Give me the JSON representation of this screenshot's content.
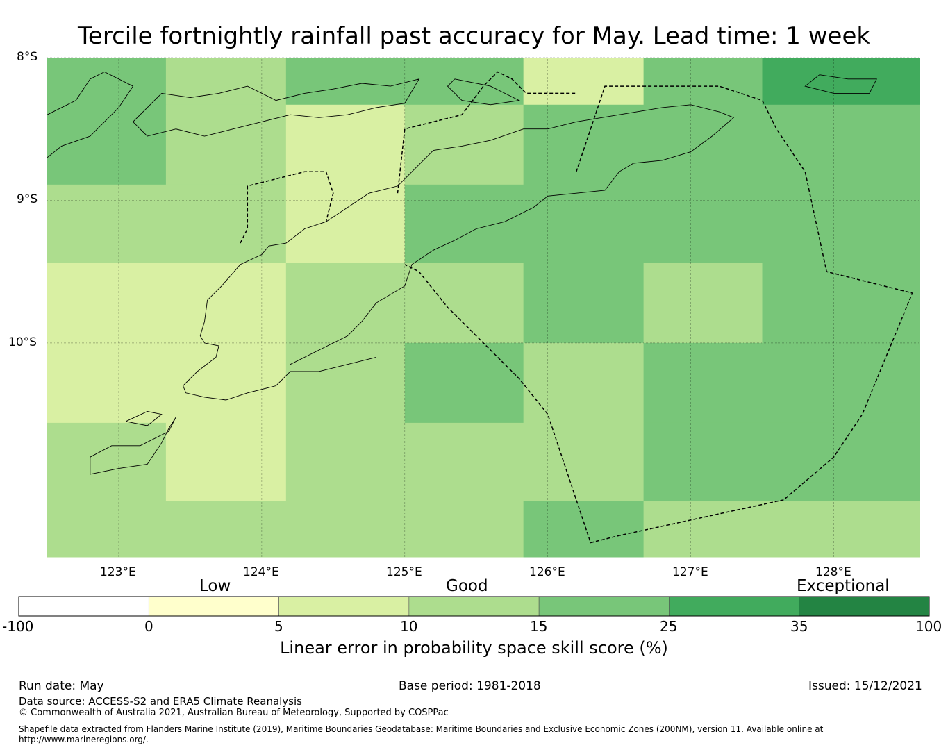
{
  "title": "Tercile fortnightly rainfall past accuracy for May. Lead time: 1 week",
  "map": {
    "lat_labels": [
      "8°S",
      "9°S",
      "10°S"
    ],
    "lon_labels": [
      "123°E",
      "124°E",
      "125°E",
      "126°E",
      "127°E",
      "128°E"
    ],
    "lon_range": [
      122.5,
      128.6
    ],
    "lat_range": [
      -11.5,
      -8.0
    ],
    "grid_lons": [
      123,
      124,
      125,
      126,
      127,
      128
    ],
    "grid_lats": [
      -8,
      -9,
      -10
    ],
    "cells": [
      {
        "lon": [
          122.5,
          123.33
        ],
        "lat": [
          -8.0,
          -8.33
        ],
        "score": 20
      },
      {
        "lon": [
          123.33,
          124.17
        ],
        "lat": [
          -8.0,
          -8.33
        ],
        "score": 12
      },
      {
        "lon": [
          124.17,
          125.0
        ],
        "lat": [
          -8.0,
          -8.33
        ],
        "score": 20
      },
      {
        "lon": [
          125.0,
          125.83
        ],
        "lat": [
          -8.0,
          -8.33
        ],
        "score": 20
      },
      {
        "lon": [
          125.83,
          126.67
        ],
        "lat": [
          -8.0,
          -8.33
        ],
        "score": 8
      },
      {
        "lon": [
          126.67,
          127.5
        ],
        "lat": [
          -8.0,
          -8.33
        ],
        "score": 20
      },
      {
        "lon": [
          127.5,
          128.6
        ],
        "lat": [
          -8.0,
          -8.33
        ],
        "score": 30
      },
      {
        "lon": [
          122.5,
          123.33
        ],
        "lat": [
          -8.33,
          -8.89
        ],
        "score": 20
      },
      {
        "lon": [
          123.33,
          124.17
        ],
        "lat": [
          -8.33,
          -8.89
        ],
        "score": 12
      },
      {
        "lon": [
          124.17,
          125.0
        ],
        "lat": [
          -8.33,
          -8.89
        ],
        "score": 8
      },
      {
        "lon": [
          125.0,
          125.83
        ],
        "lat": [
          -8.33,
          -8.89
        ],
        "score": 12
      },
      {
        "lon": [
          125.83,
          128.6
        ],
        "lat": [
          -8.33,
          -8.89
        ],
        "score": 20
      },
      {
        "lon": [
          122.5,
          124.17
        ],
        "lat": [
          -8.89,
          -9.44
        ],
        "score": 12
      },
      {
        "lon": [
          124.17,
          125.0
        ],
        "lat": [
          -8.89,
          -9.44
        ],
        "score": 8
      },
      {
        "lon": [
          125.0,
          128.6
        ],
        "lat": [
          -8.89,
          -9.44
        ],
        "score": 20
      },
      {
        "lon": [
          122.5,
          124.17
        ],
        "lat": [
          -9.44,
          -10.56
        ],
        "score": 8
      },
      {
        "lon": [
          124.17,
          125.83
        ],
        "lat": [
          -9.44,
          -10.0
        ],
        "score": 12
      },
      {
        "lon": [
          125.83,
          126.67
        ],
        "lat": [
          -9.44,
          -10.0
        ],
        "score": 20
      },
      {
        "lon": [
          126.67,
          127.5
        ],
        "lat": [
          -9.44,
          -10.0
        ],
        "score": 12
      },
      {
        "lon": [
          127.5,
          128.6
        ],
        "lat": [
          -9.44,
          -10.0
        ],
        "score": 20
      },
      {
        "lon": [
          124.17,
          125.0
        ],
        "lat": [
          -10.0,
          -10.56
        ],
        "score": 12
      },
      {
        "lon": [
          125.0,
          125.83
        ],
        "lat": [
          -10.0,
          -10.56
        ],
        "score": 20
      },
      {
        "lon": [
          125.83,
          126.67
        ],
        "lat": [
          -10.0,
          -10.56
        ],
        "score": 12
      },
      {
        "lon": [
          126.67,
          128.6
        ],
        "lat": [
          -10.0,
          -10.56
        ],
        "score": 20
      },
      {
        "lon": [
          122.5,
          123.33
        ],
        "lat": [
          -10.56,
          -11.11
        ],
        "score": 12
      },
      {
        "lon": [
          123.33,
          124.17
        ],
        "lat": [
          -10.56,
          -11.11
        ],
        "score": 8
      },
      {
        "lon": [
          124.17,
          126.67
        ],
        "lat": [
          -10.56,
          -11.11
        ],
        "score": 12
      },
      {
        "lon": [
          126.67,
          128.6
        ],
        "lat": [
          -10.56,
          -11.11
        ],
        "score": 20
      },
      {
        "lon": [
          122.5,
          125.83
        ],
        "lat": [
          -11.11,
          -11.5
        ],
        "score": 12
      },
      {
        "lon": [
          125.83,
          126.67
        ],
        "lat": [
          -11.11,
          -11.5
        ],
        "score": 20
      },
      {
        "lon": [
          126.67,
          128.6
        ],
        "lat": [
          -11.11,
          -11.5
        ],
        "score": 12
      }
    ],
    "coastlines": [
      [
        [
          124.8,
          -10.1
        ],
        [
          124.6,
          -10.15
        ],
        [
          124.4,
          -10.2
        ],
        [
          124.2,
          -10.2
        ],
        [
          124.1,
          -10.3
        ],
        [
          123.9,
          -10.35
        ],
        [
          123.75,
          -10.4
        ],
        [
          123.6,
          -10.38
        ],
        [
          123.47,
          -10.35
        ],
        [
          123.45,
          -10.3
        ],
        [
          123.55,
          -10.2
        ],
        [
          123.68,
          -10.1
        ],
        [
          123.7,
          -10.02
        ],
        [
          123.6,
          -10.0
        ],
        [
          123.57,
          -9.95
        ],
        [
          123.6,
          -9.85
        ],
        [
          123.62,
          -9.7
        ],
        [
          123.72,
          -9.6
        ],
        [
          123.85,
          -9.45
        ],
        [
          124.0,
          -9.38
        ],
        [
          124.05,
          -9.32
        ],
        [
          124.17,
          -9.3
        ],
        [
          124.3,
          -9.2
        ],
        [
          124.45,
          -9.15
        ],
        [
          124.6,
          -9.05
        ],
        [
          124.75,
          -8.95
        ],
        [
          124.95,
          -8.9
        ],
        [
          125.1,
          -8.75
        ],
        [
          125.2,
          -8.65
        ],
        [
          125.4,
          -8.62
        ],
        [
          125.6,
          -8.58
        ],
        [
          125.83,
          -8.5
        ],
        [
          126.0,
          -8.5
        ],
        [
          126.2,
          -8.45
        ],
        [
          126.5,
          -8.4
        ],
        [
          126.8,
          -8.35
        ],
        [
          127.0,
          -8.33
        ],
        [
          127.2,
          -8.38
        ],
        [
          127.3,
          -8.42
        ],
        [
          127.15,
          -8.55
        ],
        [
          127.0,
          -8.66
        ],
        [
          126.8,
          -8.72
        ],
        [
          126.6,
          -8.74
        ],
        [
          126.5,
          -8.8
        ],
        [
          126.4,
          -8.93
        ],
        [
          126.2,
          -8.95
        ],
        [
          126.0,
          -8.97
        ],
        [
          125.9,
          -9.05
        ],
        [
          125.7,
          -9.15
        ],
        [
          125.5,
          -9.2
        ],
        [
          125.35,
          -9.28
        ],
        [
          125.2,
          -9.35
        ],
        [
          125.05,
          -9.45
        ],
        [
          125.0,
          -9.6
        ],
        [
          124.8,
          -9.72
        ],
        [
          124.7,
          -9.85
        ],
        [
          124.6,
          -9.95
        ],
        [
          124.5,
          -10.0
        ],
        [
          124.4,
          -10.05
        ],
        [
          124.3,
          -10.1
        ],
        [
          124.2,
          -10.15
        ]
      ],
      [
        [
          123.3,
          -8.25
        ],
        [
          123.5,
          -8.28
        ],
        [
          123.7,
          -8.25
        ],
        [
          123.9,
          -8.2
        ],
        [
          124.1,
          -8.3
        ],
        [
          124.3,
          -8.25
        ],
        [
          124.5,
          -8.22
        ],
        [
          124.7,
          -8.18
        ],
        [
          124.9,
          -8.2
        ],
        [
          125.1,
          -8.15
        ],
        [
          125.0,
          -8.32
        ],
        [
          124.8,
          -8.35
        ],
        [
          124.6,
          -8.4
        ],
        [
          124.4,
          -8.42
        ],
        [
          124.2,
          -8.4
        ],
        [
          124.0,
          -8.45
        ],
        [
          123.8,
          -8.5
        ],
        [
          123.6,
          -8.55
        ],
        [
          123.4,
          -8.5
        ],
        [
          123.2,
          -8.55
        ],
        [
          123.1,
          -8.45
        ],
        [
          123.2,
          -8.35
        ],
        [
          123.3,
          -8.25
        ]
      ],
      [
        [
          122.5,
          -8.4
        ],
        [
          122.7,
          -8.3
        ],
        [
          122.8,
          -8.15
        ],
        [
          122.9,
          -8.1
        ],
        [
          123.1,
          -8.2
        ],
        [
          123.0,
          -8.35
        ],
        [
          122.9,
          -8.45
        ],
        [
          122.8,
          -8.55
        ],
        [
          122.6,
          -8.62
        ],
        [
          122.5,
          -8.7
        ]
      ],
      [
        [
          125.35,
          -8.15
        ],
        [
          125.6,
          -8.2
        ],
        [
          125.8,
          -8.3
        ],
        [
          125.6,
          -8.33
        ],
        [
          125.4,
          -8.3
        ],
        [
          125.3,
          -8.2
        ],
        [
          125.35,
          -8.15
        ]
      ],
      [
        [
          127.9,
          -8.12
        ],
        [
          128.1,
          -8.15
        ],
        [
          128.3,
          -8.15
        ],
        [
          128.25,
          -8.25
        ],
        [
          128.0,
          -8.25
        ],
        [
          127.8,
          -8.2
        ],
        [
          127.9,
          -8.12
        ]
      ],
      [
        [
          122.8,
          -10.8
        ],
        [
          122.95,
          -10.72
        ],
        [
          123.15,
          -10.72
        ],
        [
          123.35,
          -10.62
        ],
        [
          123.4,
          -10.52
        ],
        [
          123.35,
          -10.6
        ],
        [
          123.3,
          -10.7
        ],
        [
          123.2,
          -10.85
        ],
        [
          123.0,
          -10.88
        ],
        [
          122.8,
          -10.92
        ],
        [
          122.8,
          -10.8
        ]
      ],
      [
        [
          123.05,
          -10.55
        ],
        [
          123.2,
          -10.48
        ],
        [
          123.3,
          -10.5
        ],
        [
          123.2,
          -10.58
        ],
        [
          123.05,
          -10.55
        ]
      ]
    ],
    "eez_boundary": [
      [
        126.2,
        -8.8
      ],
      [
        126.4,
        -8.2
      ],
      [
        126.8,
        -8.2
      ],
      [
        127.2,
        -8.2
      ],
      [
        127.5,
        -8.3
      ],
      [
        127.6,
        -8.5
      ],
      [
        127.8,
        -8.8
      ],
      [
        127.95,
        -9.5
      ],
      [
        128.55,
        -9.65
      ],
      [
        128.2,
        -10.5
      ],
      [
        128.0,
        -10.8
      ],
      [
        127.65,
        -11.1
      ],
      [
        126.5,
        -11.35
      ],
      [
        126.3,
        -11.4
      ],
      [
        126.0,
        -10.5
      ],
      [
        125.8,
        -10.25
      ],
      [
        125.3,
        -9.75
      ],
      [
        125.1,
        -9.5
      ],
      [
        125.0,
        -9.45
      ]
    ],
    "eez_boundary_2": [
      [
        123.85,
        -9.3
      ],
      [
        123.9,
        -9.2
      ],
      [
        123.9,
        -8.9
      ],
      [
        124.3,
        -8.8
      ],
      [
        124.45,
        -8.8
      ],
      [
        124.5,
        -8.95
      ],
      [
        124.45,
        -9.15
      ]
    ],
    "eez_boundary_3": [
      [
        124.95,
        -8.95
      ],
      [
        125.0,
        -8.5
      ],
      [
        125.4,
        -8.4
      ],
      [
        125.55,
        -8.2
      ],
      [
        125.65,
        -8.1
      ],
      [
        125.75,
        -8.15
      ],
      [
        125.85,
        -8.25
      ],
      [
        126.2,
        -8.25
      ]
    ]
  },
  "colorbar": {
    "category_labels": [
      "Low",
      "Good",
      "Exceptional"
    ],
    "tick_labels": [
      "-100",
      "0",
      "5",
      "10",
      "15",
      "25",
      "35",
      "100"
    ],
    "colors": [
      "#ffffff",
      "#ffffcc",
      "#d9f0a3",
      "#addd8e",
      "#78c679",
      "#41ab5d",
      "#238443"
    ],
    "label": "Linear error in probability space skill score (%)"
  },
  "footer": {
    "run_date": "Run date: May",
    "base_period": "Base period: 1981-2018",
    "issued": "Issued: 15/12/2021",
    "data_source": "Data source: ACCESS-S2 and ERA5 Climate Reanalysis",
    "copyright": "© Commonwealth of Australia 2021, Australian Bureau of Meteorology, Supported by COSPPac",
    "shapefile_line1": "Shapefile data extracted from Flanders Marine Institute (2019), Maritime Boundaries Geodatabase: Maritime Boundaries and Exclusive Economic Zones (200NM), version 11. Available online at",
    "shapefile_line2": "http://www.marineregions.org/."
  }
}
